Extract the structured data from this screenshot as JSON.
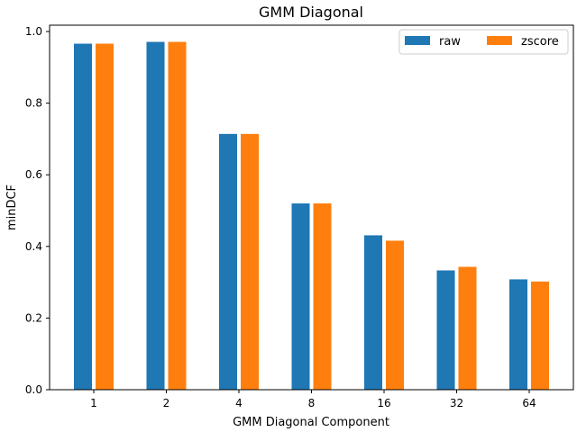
{
  "chart_data": {
    "type": "bar",
    "title": "GMM Diagonal",
    "xlabel": "GMM Diagonal Component",
    "ylabel": "minDCF",
    "categories": [
      "1",
      "2",
      "4",
      "8",
      "16",
      "32",
      "64"
    ],
    "series": [
      {
        "name": "raw",
        "color": "#1f77b4",
        "values": [
          0.966,
          0.971,
          0.714,
          0.52,
          0.431,
          0.333,
          0.308
        ]
      },
      {
        "name": "zscore",
        "color": "#ff7f0e",
        "values": [
          0.966,
          0.971,
          0.714,
          0.52,
          0.416,
          0.343,
          0.302
        ]
      }
    ],
    "ylim": [
      0,
      1.0
    ],
    "yticks": [
      "0.0",
      "0.2",
      "0.4",
      "0.6",
      "0.8",
      "1.0"
    ],
    "legend": "top-right",
    "grid": false
  }
}
